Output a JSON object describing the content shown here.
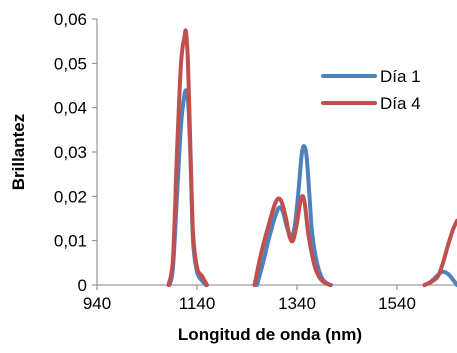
{
  "chart_data": {
    "type": "line",
    "title": "",
    "xlabel": "Longitud de onda (nm)",
    "ylabel": "Brillantez",
    "xlim": [
      940,
      1660
    ],
    "ylim": [
      0,
      0.06
    ],
    "x_ticks": [
      940,
      1140,
      1340,
      1540
    ],
    "x_tick_labels": [
      "940",
      "1140",
      "1340",
      "1540"
    ],
    "y_ticks": [
      0,
      0.01,
      0.02,
      0.03,
      0.04,
      0.05,
      0.06
    ],
    "y_tick_labels": [
      "0",
      "0,01",
      "0,02",
      "0,03",
      "0,04",
      "0,05",
      "0,06"
    ],
    "grid": false,
    "legend_position": "top-right",
    "series": [
      {
        "name": "Día 1",
        "color": "#4F81BD",
        "x": [
          1085,
          1092,
          1100,
          1108,
          1115,
          1119,
          1123,
          1128,
          1132,
          1140,
          1150,
          1158,
          1260,
          1272,
          1285,
          1298,
          1305,
          1312,
          1320,
          1328,
          1335,
          1342,
          1350,
          1356,
          1360,
          1365,
          1370,
          1378,
          1388,
          1398,
          1408,
          1595,
          1605,
          1615,
          1624,
          1632,
          1642,
          1650,
          1660
        ],
        "y": [
          0,
          0.004,
          0.02,
          0.036,
          0.043,
          0.0435,
          0.04,
          0.025,
          0.01,
          0.003,
          0.001,
          0,
          0,
          0.005,
          0.011,
          0.016,
          0.0175,
          0.0165,
          0.013,
          0.011,
          0.013,
          0.02,
          0.03,
          0.031,
          0.028,
          0.02,
          0.012,
          0.006,
          0.002,
          0.0005,
          0,
          0,
          0.0005,
          0.0015,
          0.0025,
          0.003,
          0.0025,
          0.0015,
          0
        ]
      },
      {
        "name": "Día 4",
        "color": "#C0504D",
        "x": [
          1083,
          1092,
          1100,
          1108,
          1115,
          1118,
          1122,
          1127,
          1132,
          1140,
          1150,
          1160,
          1255,
          1268,
          1282,
          1295,
          1303,
          1310,
          1318,
          1325,
          1332,
          1340,
          1347,
          1352,
          1356,
          1362,
          1368,
          1376,
          1386,
          1396,
          1406,
          1595,
          1610,
          1622,
          1632,
          1642,
          1652,
          1660
        ],
        "y": [
          0,
          0.006,
          0.03,
          0.05,
          0.056,
          0.057,
          0.05,
          0.03,
          0.012,
          0.004,
          0.002,
          0,
          0,
          0.007,
          0.013,
          0.018,
          0.0195,
          0.0185,
          0.015,
          0.011,
          0.01,
          0.014,
          0.019,
          0.02,
          0.018,
          0.012,
          0.008,
          0.004,
          0.0015,
          0.0005,
          0,
          0,
          0.0008,
          0.002,
          0.005,
          0.009,
          0.0125,
          0.0145
        ]
      }
    ]
  }
}
